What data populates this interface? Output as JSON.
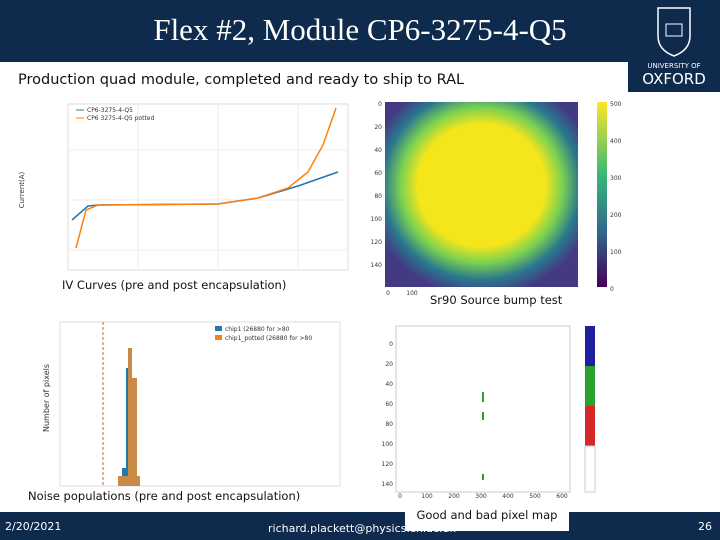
{
  "header": {
    "title": "Flex #2, Module CP6-3275-4-Q5",
    "subtitle": "Production quad module, completed and ready to ship to RAL",
    "logo": [
      "UNIVERSITY OF",
      "OXFORD"
    ]
  },
  "figures": {
    "iv": {
      "caption": "IV Curves (pre and post encapsulation)",
      "legend": [
        "CP6-3275-4-Q5",
        "CP6 3275-4-Q5 potted"
      ],
      "ylabel": "Current(A)"
    },
    "sr90": {
      "caption": "Sr90 Source bump test",
      "yticks": [
        "0",
        "20",
        "40",
        "60",
        "80",
        "100",
        "120",
        "140"
      ],
      "xticks": [
        "0",
        "100"
      ],
      "cticks": [
        "500",
        "400",
        "300",
        "200",
        "100",
        "0"
      ]
    },
    "noise": {
      "caption": "Noise populations (pre and post encapsulation)",
      "legend": [
        "chip1 (26880 for >80",
        "chip1_potted (26880 for >80"
      ],
      "ylabel": "Number of pixels"
    },
    "pixelmap": {
      "caption": "Good and bad pixel map",
      "yticks": [
        "0",
        "20",
        "40",
        "60",
        "80",
        "100",
        "120",
        "140"
      ],
      "xticks": [
        "0",
        "100",
        "200",
        "300",
        "400",
        "500",
        "600"
      ]
    }
  },
  "footer": {
    "date": "2/20/2021",
    "email": "richard.plackett@physics.ox.ac.uk",
    "page": "26"
  }
}
